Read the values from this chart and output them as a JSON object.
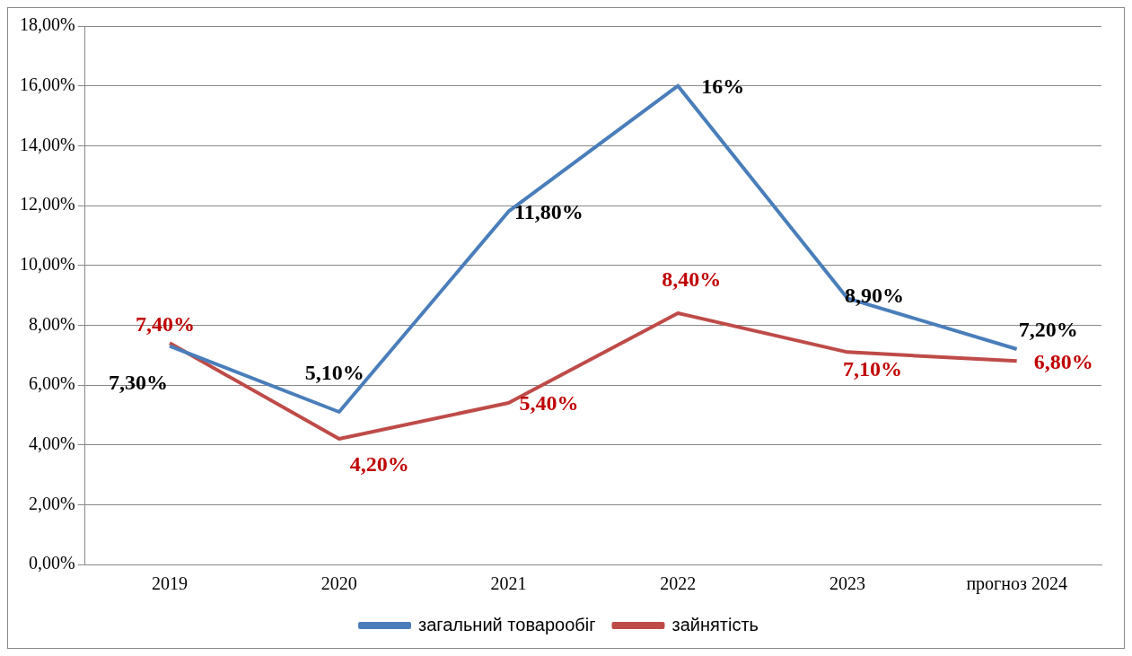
{
  "chart_data": {
    "type": "line",
    "categories": [
      "2019",
      "2020",
      "2021",
      "2022",
      "2023",
      "прогноз 2024"
    ],
    "series": [
      {
        "name": "загальний товарообіг",
        "color": "#4a7ebb",
        "values": [
          7.3,
          5.1,
          11.8,
          16,
          8.9,
          7.2
        ],
        "value_labels": [
          "7,30%",
          "5,10%",
          "11,80%",
          "16%",
          "8,90%",
          "7,20%"
        ]
      },
      {
        "name": "зайнятість",
        "color": "#be4b48",
        "values": [
          7.4,
          4.2,
          5.4,
          8.4,
          7.1,
          6.8
        ],
        "value_labels": [
          "7,40%",
          "4,20%",
          "5,40%",
          "8,40%",
          "7,10%",
          "6,80%"
        ]
      }
    ],
    "ylim": [
      0,
      18
    ],
    "yticks": [
      {
        "value": 0,
        "label": "0,00%"
      },
      {
        "value": 2,
        "label": "2,00%"
      },
      {
        "value": 4,
        "label": "4,00%"
      },
      {
        "value": 6,
        "label": "6,00%"
      },
      {
        "value": 8,
        "label": "8,00%"
      },
      {
        "value": 10,
        "label": "10,00%"
      },
      {
        "value": 12,
        "label": "12,00%"
      },
      {
        "value": 14,
        "label": "14,00%"
      },
      {
        "value": 16,
        "label": "16,00%"
      },
      {
        "value": 18,
        "label": "18,00%"
      }
    ],
    "grid": "y",
    "legend": "bottom",
    "marker": "none",
    "line_style": "solid"
  }
}
